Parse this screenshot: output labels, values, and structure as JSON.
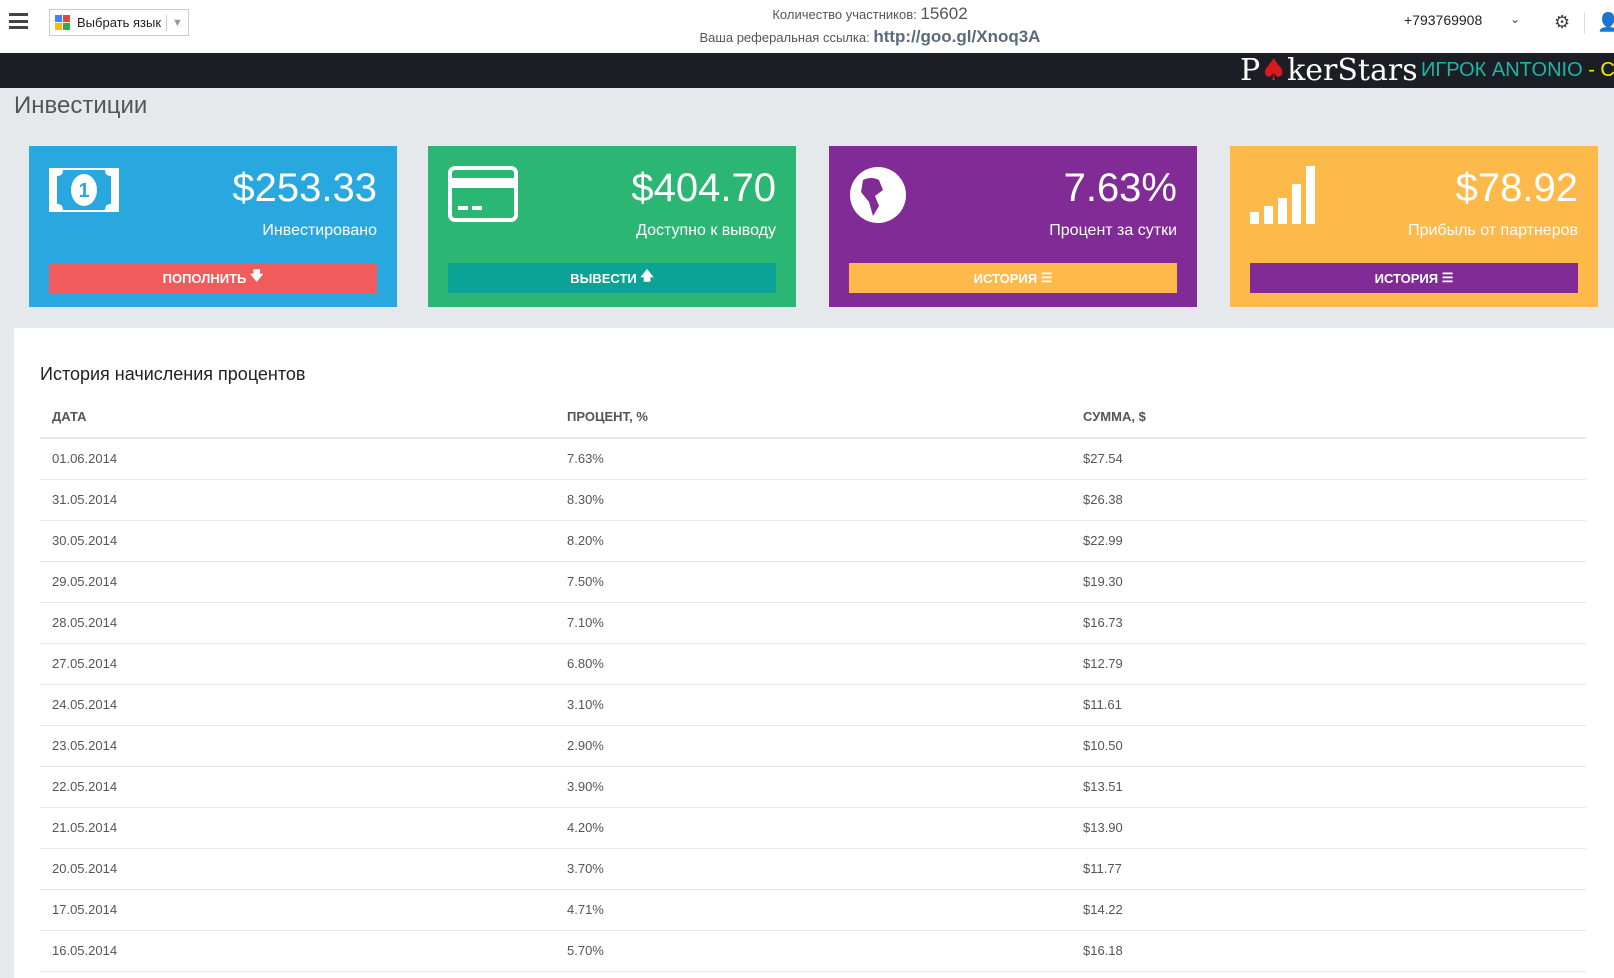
{
  "topbar": {
    "lang_label": "Выбрать язык",
    "members_label": "Количество участников:",
    "members_count": "15602",
    "ref_label": "Ваша реферальная ссылка:",
    "ref_link": "http://goo.gl/Xnoq3A",
    "phone": "+793769908"
  },
  "banner": {
    "logo": "PokerStars",
    "player": "ИГРОК ANTONIO",
    "player_suffix": "- C"
  },
  "page_title": "Инвестиции",
  "cards": [
    {
      "value": "$253.33",
      "label": "Инвестировано",
      "button": "ПОПОЛНИТЬ",
      "icon": "money-icon",
      "button_icon": "arrow-down-icon",
      "color": "#29a8e0",
      "button_color": "#f25b5b"
    },
    {
      "value": "$404.70",
      "label": "Доступно к выводу",
      "button": "ВЫВЕСТИ",
      "icon": "credit-card-icon",
      "button_icon": "arrow-up-icon",
      "color": "#2bb673",
      "button_color": "#0ba396"
    },
    {
      "value": "7.63%",
      "label": "Процент за сутки",
      "button": "ИСТОРИЯ",
      "icon": "globe-icon",
      "button_icon": "list-icon",
      "color": "#812b96",
      "button_color": "#fdb94a"
    },
    {
      "value": "$78.92",
      "label": "Прибыль от партнеров",
      "button": "ИСТОРИЯ",
      "icon": "signal-bars-icon",
      "button_icon": "list-icon",
      "color": "#fdb94a",
      "button_color": "#812b96"
    }
  ],
  "history": {
    "title": "История начисления процентов",
    "columns": [
      "ДАТА",
      "ПРОЦЕНТ, %",
      "СУММА, $"
    ],
    "rows": [
      [
        "01.06.2014",
        "7.63%",
        "$27.54"
      ],
      [
        "31.05.2014",
        "8.30%",
        "$26.38"
      ],
      [
        "30.05.2014",
        "8.20%",
        "$22.99"
      ],
      [
        "29.05.2014",
        "7.50%",
        "$19.30"
      ],
      [
        "28.05.2014",
        "7.10%",
        "$16.73"
      ],
      [
        "27.05.2014",
        "6.80%",
        "$12.79"
      ],
      [
        "24.05.2014",
        "3.10%",
        "$11.61"
      ],
      [
        "23.05.2014",
        "2.90%",
        "$10.50"
      ],
      [
        "22.05.2014",
        "3.90%",
        "$13.51"
      ],
      [
        "21.05.2014",
        "4.20%",
        "$13.90"
      ],
      [
        "20.05.2014",
        "3.70%",
        "$11.77"
      ],
      [
        "17.05.2014",
        "4.71%",
        "$14.22"
      ],
      [
        "16.05.2014",
        "5.70%",
        "$16.18"
      ]
    ]
  }
}
